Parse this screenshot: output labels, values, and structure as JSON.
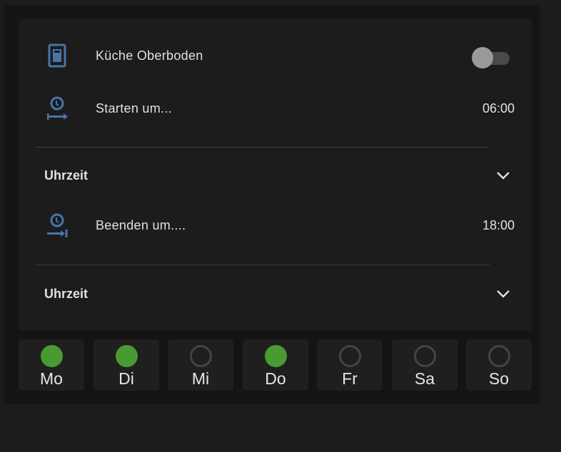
{
  "device": {
    "name": "Küche Oberboden",
    "icon": "door-icon",
    "switch_on": false
  },
  "start": {
    "label": "Starten um...",
    "value": "06:00",
    "icon": "clock-start-icon",
    "expander": "Uhrzeit"
  },
  "end": {
    "label": "Beenden um....",
    "value": "18:00",
    "icon": "clock-end-icon",
    "expander": "Uhrzeit"
  },
  "days": [
    {
      "label": "Mo",
      "active": true
    },
    {
      "label": "Di",
      "active": true
    },
    {
      "label": "Mi",
      "active": false
    },
    {
      "label": "Do",
      "active": true
    },
    {
      "label": "Fr",
      "active": false
    },
    {
      "label": "Sa",
      "active": false
    },
    {
      "label": "So",
      "active": false
    }
  ],
  "colors": {
    "accent_icon": "#4a74a8",
    "active_day": "#4a9a32"
  }
}
